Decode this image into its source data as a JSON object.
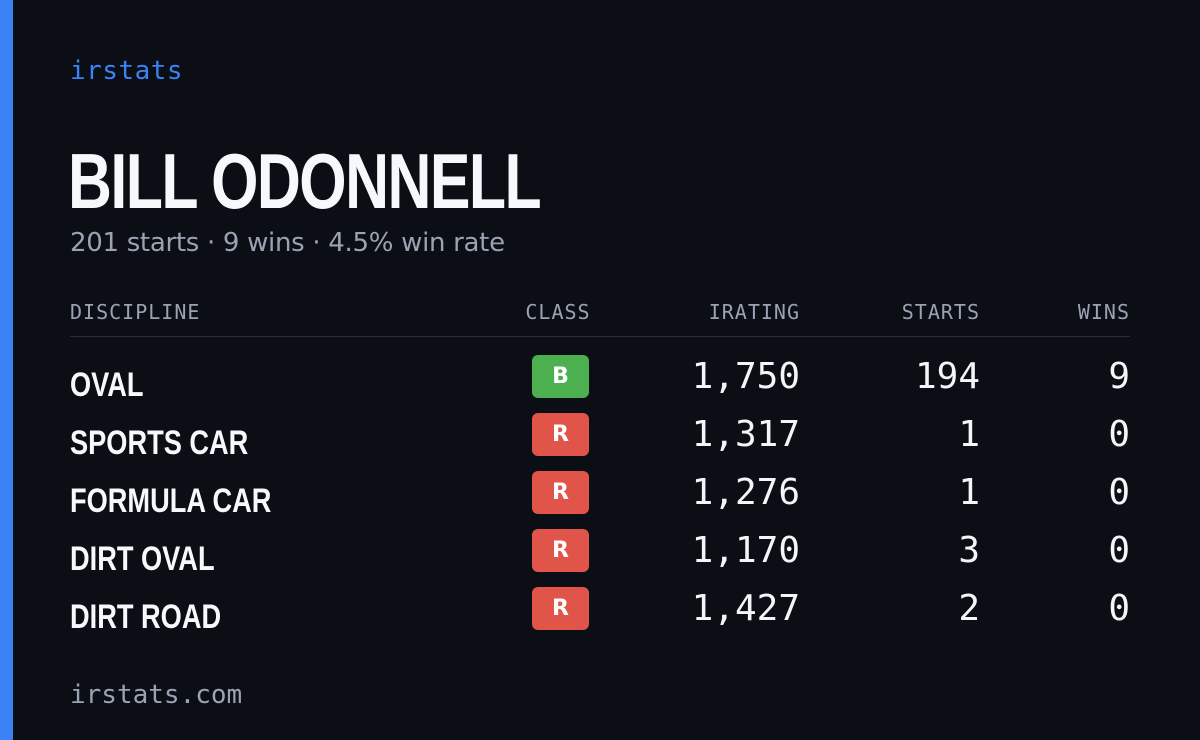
{
  "brand": "irstats",
  "driver": {
    "name": "BILL ODONNELL",
    "summary": "201 starts · 9 wins · 4.5% win rate"
  },
  "colors": {
    "accent": "#3b82f6",
    "background": "#0b0e15",
    "class_B": "#4caf50",
    "class_R": "#e15449"
  },
  "table": {
    "headers": {
      "discipline": "DISCIPLINE",
      "class": "CLASS",
      "irating": "IRATING",
      "starts": "STARTS",
      "wins": "WINS"
    },
    "rows": [
      {
        "discipline": "OVAL",
        "class": "B",
        "irating": "1,750",
        "starts": "194",
        "wins": "9"
      },
      {
        "discipline": "SPORTS CAR",
        "class": "R",
        "irating": "1,317",
        "starts": "1",
        "wins": "0"
      },
      {
        "discipline": "FORMULA CAR",
        "class": "R",
        "irating": "1,276",
        "starts": "1",
        "wins": "0"
      },
      {
        "discipline": "DIRT OVAL",
        "class": "R",
        "irating": "1,170",
        "starts": "3",
        "wins": "0"
      },
      {
        "discipline": "DIRT ROAD",
        "class": "R",
        "irating": "1,427",
        "starts": "2",
        "wins": "0"
      }
    ]
  },
  "footer": {
    "url": "irstats.com"
  }
}
